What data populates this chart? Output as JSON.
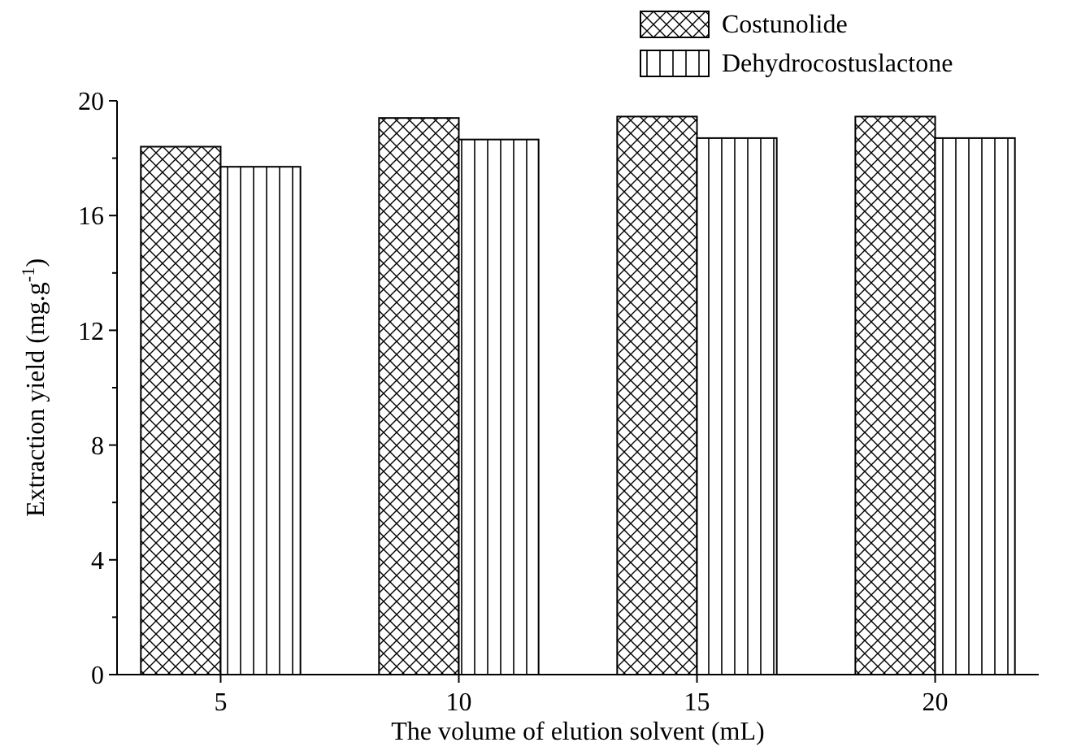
{
  "chart_data": {
    "type": "bar",
    "xlabel": "The volume of elution solvent (mL)",
    "ylabel": "Extraction yield (mg.g$^{-1}$)",
    "categories": [
      "5",
      "10",
      "15",
      "20"
    ],
    "series": [
      {
        "name": "Costunolide",
        "color": "#000000",
        "values": [
          18.4,
          19.4,
          19.45,
          19.45
        ]
      },
      {
        "name": "Dehydrocostuslactone",
        "color": "#000000",
        "values": [
          17.7,
          18.65,
          18.7,
          18.7
        ]
      }
    ],
    "ylim": [
      0,
      20
    ],
    "yticks": [
      0,
      {
        "value": 2,
        "label": null
      },
      4,
      {
        "value": 6,
        "label": null
      },
      8,
      {
        "value": 10,
        "label": null
      },
      12,
      {
        "value": 14,
        "label": null
      },
      16,
      {
        "value": 18,
        "label": null
      },
      20
    ],
    "grid": false,
    "legend": "top right"
  }
}
